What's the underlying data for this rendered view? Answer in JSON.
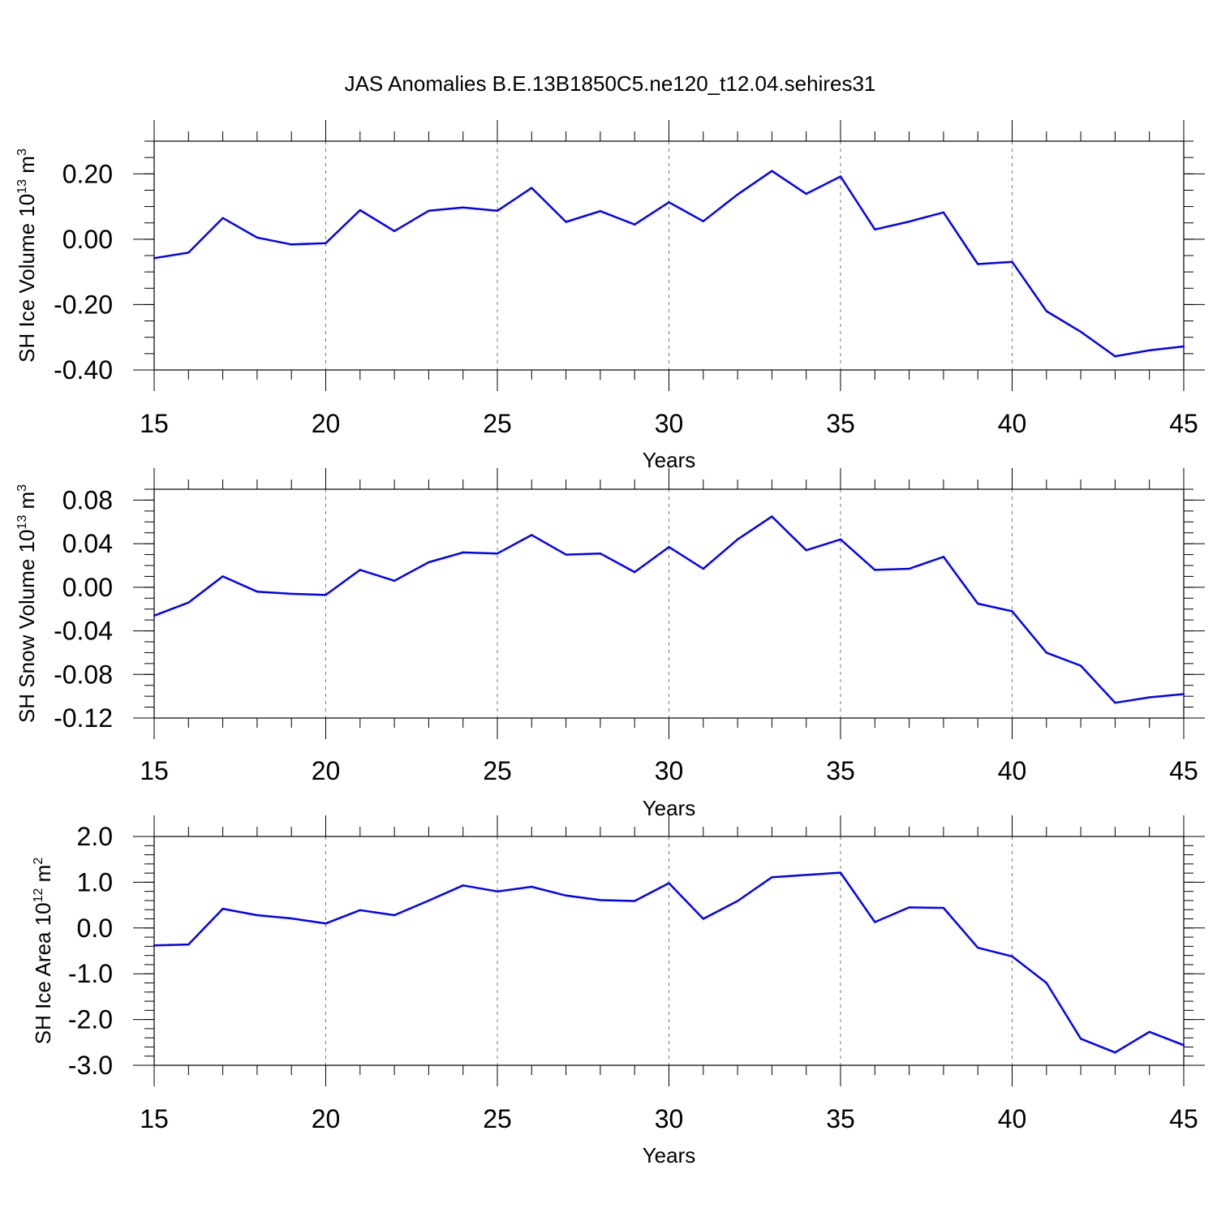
{
  "title": "JAS Anomalies B.E.13B1850C5.ne120_t12.04.sehires31",
  "line_color": "#0000ff",
  "chart_data": [
    {
      "type": "line",
      "xlabel": "Years",
      "ylabel": {
        "text": "SH Ice Volume 10",
        "exp": "13",
        "unit": " m",
        "unit_exp": "3"
      },
      "xlim": [
        15,
        45
      ],
      "ylim": [
        -0.4,
        0.3
      ],
      "x_ticks": [
        "15",
        "20",
        "25",
        "30",
        "35",
        "40",
        "45"
      ],
      "y_ticks": [
        {
          "value": 0.2,
          "label": "0.20"
        },
        {
          "value": 0.0,
          "label": "0.00"
        },
        {
          "value": -0.2,
          "label": "-0.20"
        },
        {
          "value": -0.4,
          "label": "-0.40"
        }
      ],
      "y_minor_step": 0.05,
      "grid": "vertical-dashed",
      "x": [
        15,
        16,
        17,
        18,
        19,
        20,
        21,
        22,
        23,
        24,
        25,
        26,
        27,
        28,
        29,
        30,
        31,
        32,
        33,
        34,
        35,
        36,
        37,
        38,
        39,
        40,
        41,
        42,
        43,
        44,
        45
      ],
      "values": [
        -0.058,
        -0.041,
        0.065,
        0.005,
        -0.016,
        -0.012,
        0.089,
        0.025,
        0.087,
        0.097,
        0.087,
        0.157,
        0.053,
        0.086,
        0.045,
        0.113,
        0.055,
        0.137,
        0.209,
        0.139,
        0.192,
        0.03,
        0.054,
        0.082,
        -0.076,
        -0.069,
        -0.22,
        -0.283,
        -0.358,
        -0.34,
        -0.328
      ]
    },
    {
      "type": "line",
      "xlabel": "Years",
      "ylabel": {
        "text": "SH Snow Volume 10",
        "exp": "13",
        "unit": " m",
        "unit_exp": "3"
      },
      "xlim": [
        15,
        45
      ],
      "ylim": [
        -0.12,
        0.09
      ],
      "x_ticks": [
        "15",
        "20",
        "25",
        "30",
        "35",
        "40",
        "45"
      ],
      "y_ticks": [
        {
          "value": 0.08,
          "label": "0.08"
        },
        {
          "value": 0.04,
          "label": "0.04"
        },
        {
          "value": 0.0,
          "label": "0.00"
        },
        {
          "value": -0.04,
          "label": "-0.04"
        },
        {
          "value": -0.08,
          "label": "-0.08"
        },
        {
          "value": -0.12,
          "label": "-0.12"
        }
      ],
      "y_minor_step": 0.01,
      "grid": "vertical-dashed",
      "x": [
        15,
        16,
        17,
        18,
        19,
        20,
        21,
        22,
        23,
        24,
        25,
        26,
        27,
        28,
        29,
        30,
        31,
        32,
        33,
        34,
        35,
        36,
        37,
        38,
        39,
        40,
        41,
        42,
        43,
        44,
        45
      ],
      "values": [
        -0.026,
        -0.014,
        0.01,
        -0.004,
        -0.006,
        -0.007,
        0.016,
        0.006,
        0.023,
        0.032,
        0.031,
        0.048,
        0.03,
        0.031,
        0.014,
        0.037,
        0.017,
        0.044,
        0.065,
        0.034,
        0.044,
        0.016,
        0.017,
        0.028,
        -0.015,
        -0.022,
        -0.06,
        -0.072,
        -0.106,
        -0.101,
        -0.098
      ]
    },
    {
      "type": "line",
      "xlabel": "Years",
      "ylabel": {
        "text": "SH Ice Area 10",
        "exp": "12",
        "unit": " m",
        "unit_exp": "2"
      },
      "xlim": [
        15,
        45
      ],
      "ylim": [
        -3.0,
        2.0
      ],
      "x_ticks": [
        "15",
        "20",
        "25",
        "30",
        "35",
        "40",
        "45"
      ],
      "y_ticks": [
        {
          "value": 2.0,
          "label": "2.0"
        },
        {
          "value": 1.0,
          "label": "1.0"
        },
        {
          "value": 0.0,
          "label": "0.0"
        },
        {
          "value": -1.0,
          "label": "-1.0"
        },
        {
          "value": -2.0,
          "label": "-2.0"
        },
        {
          "value": -3.0,
          "label": "-3.0"
        }
      ],
      "y_minor_step": 0.2,
      "grid": "vertical-dashed",
      "x": [
        15,
        16,
        17,
        18,
        19,
        20,
        21,
        22,
        23,
        24,
        25,
        26,
        27,
        28,
        29,
        30,
        31,
        32,
        33,
        34,
        35,
        36,
        37,
        38,
        39,
        40,
        41,
        42,
        43,
        44,
        45
      ],
      "values": [
        -0.38,
        -0.36,
        0.42,
        0.28,
        0.21,
        0.1,
        0.39,
        0.28,
        0.6,
        0.93,
        0.8,
        0.9,
        0.71,
        0.61,
        0.59,
        0.98,
        0.2,
        0.59,
        1.11,
        1.16,
        1.21,
        0.13,
        0.45,
        0.44,
        -0.43,
        -0.62,
        -1.2,
        -2.42,
        -2.72,
        -2.27,
        -2.56
      ]
    }
  ]
}
